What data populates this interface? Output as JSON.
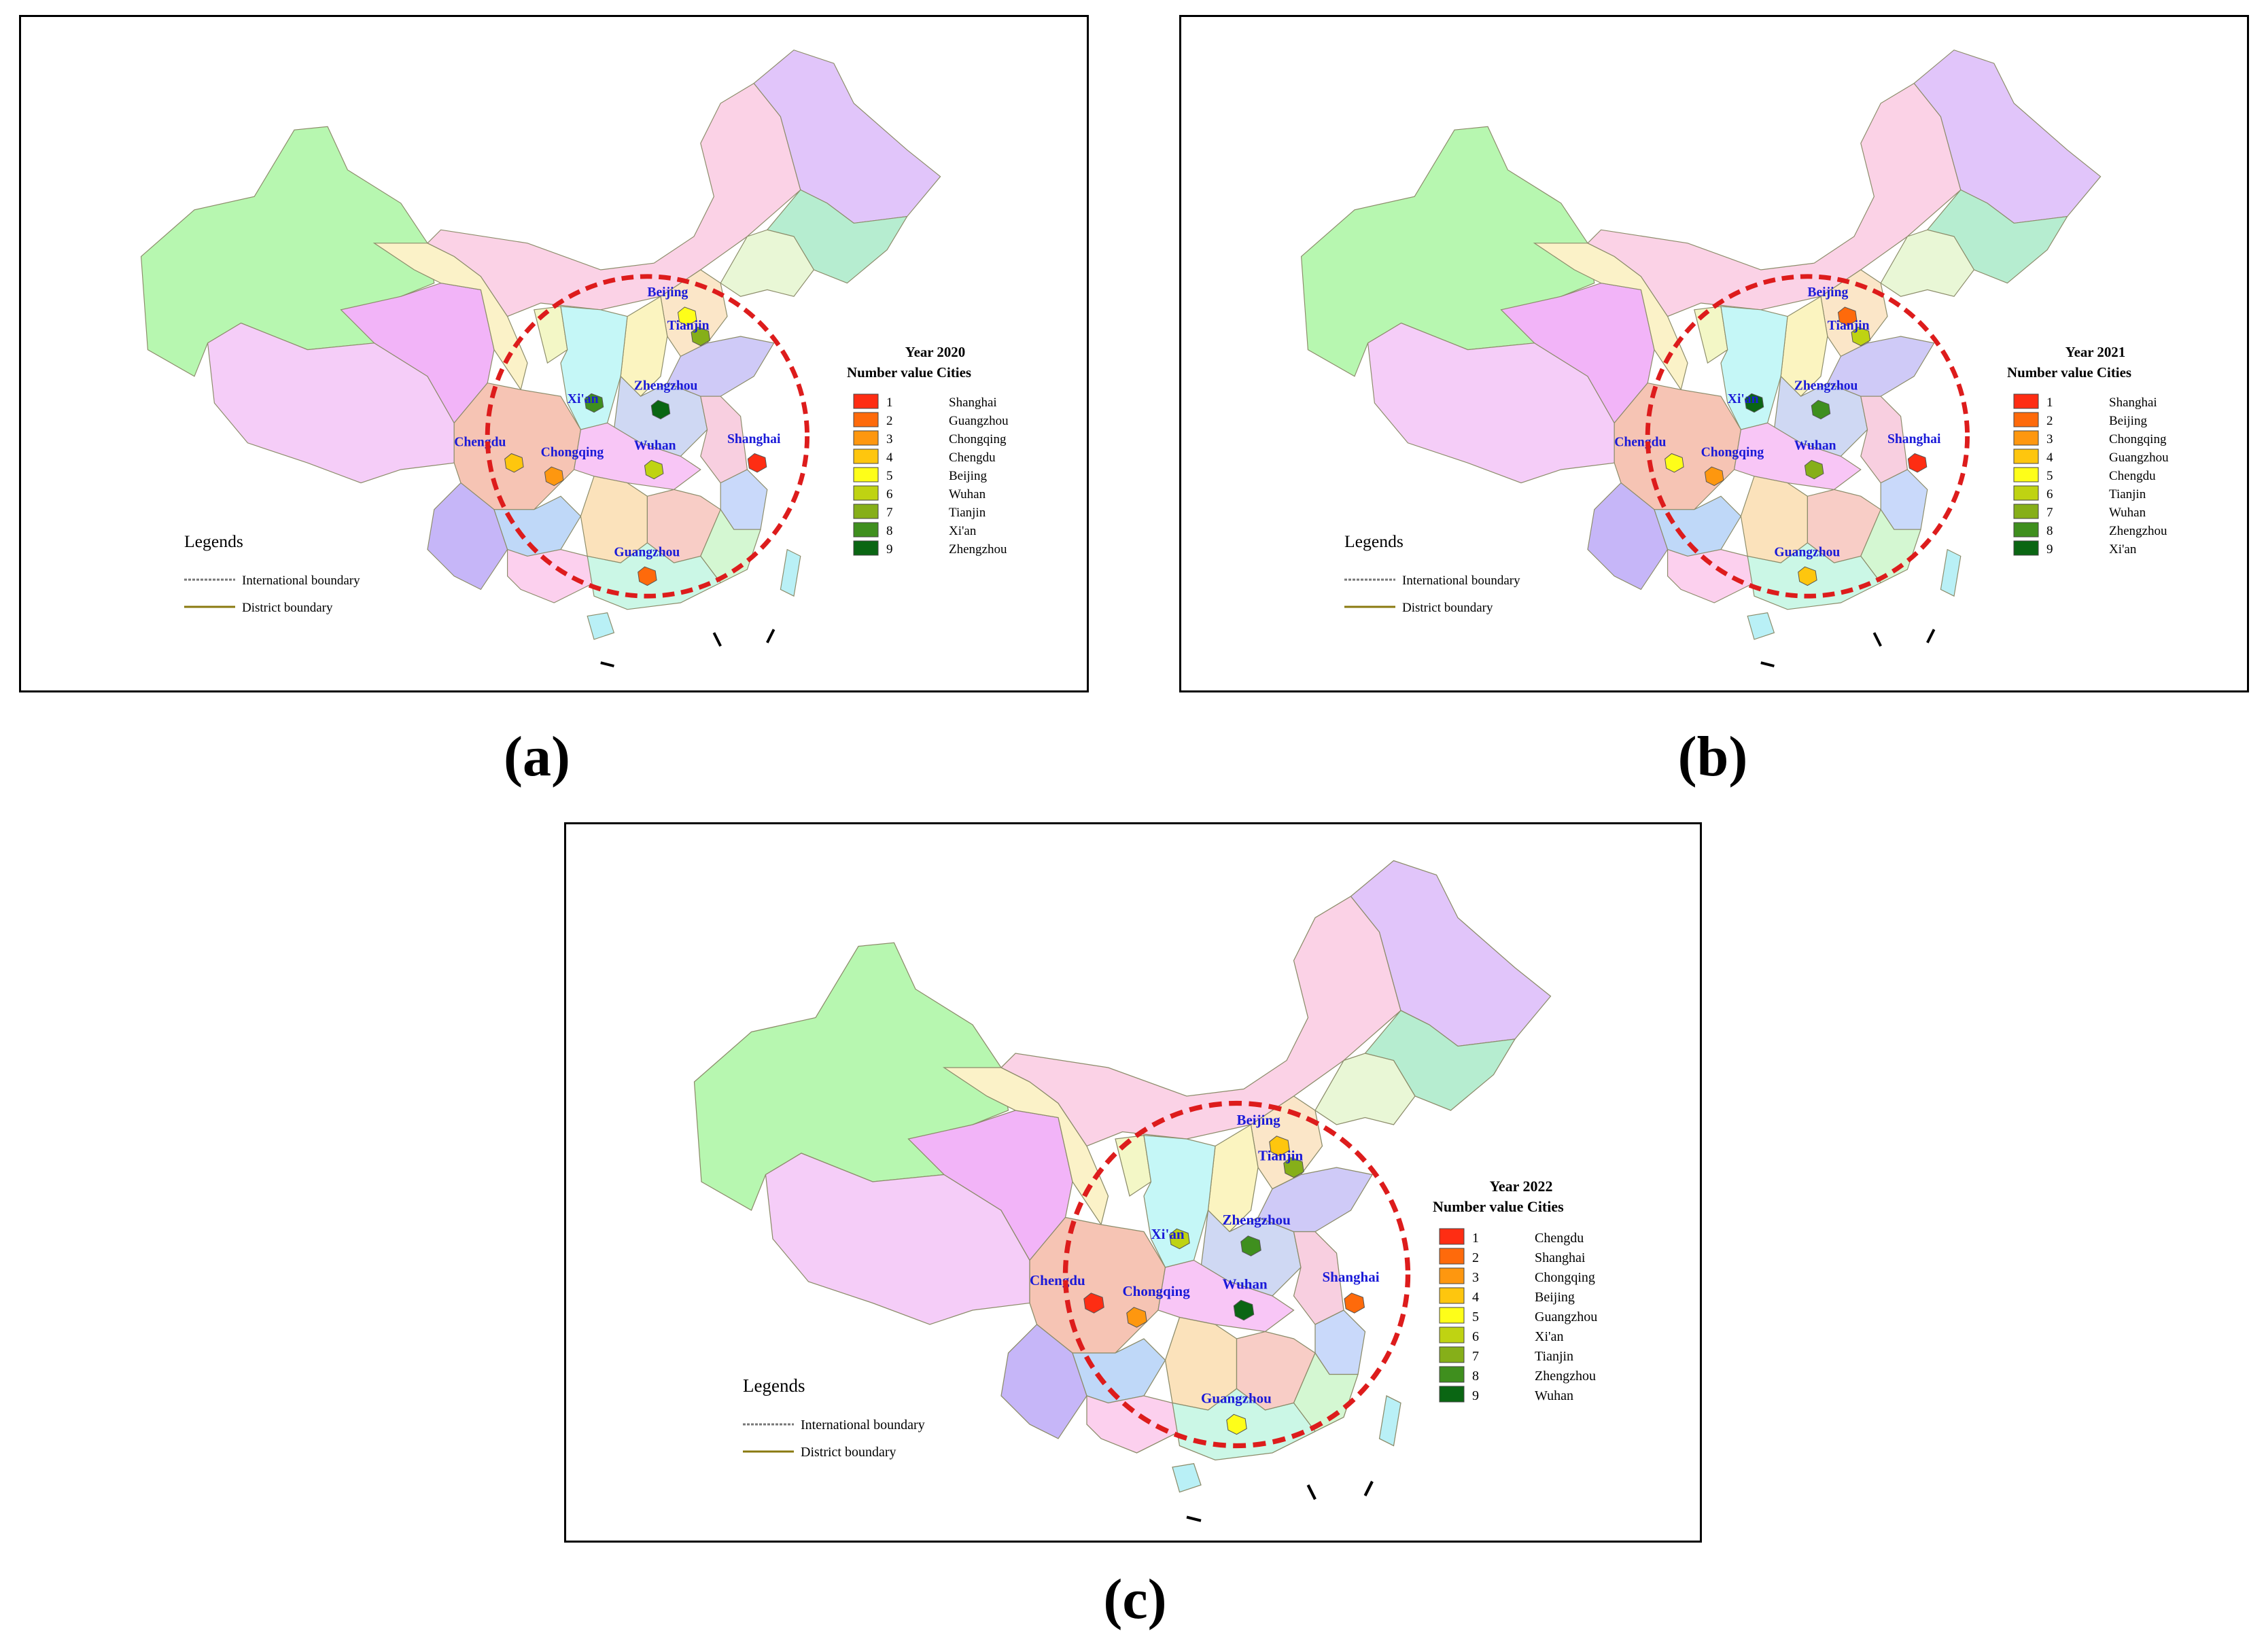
{
  "colors": {
    "ring": "#dd1c1c",
    "city_label": "#1a1ad8",
    "xinjiang": "#b7f7b0",
    "tibet": "#f5cdf8",
    "qinghai": "#f2b4f8",
    "gansu": "#fbf2c8",
    "inner_mongolia": "#fbd2e6",
    "heilongjiang": "#e1c5fa",
    "jilin": "#b6edd0",
    "liaoning": "#e9f7d6",
    "sichuan": "#f6c4b4",
    "yunnan": "#c6b6f8",
    "guangxi": "#fcd0ee",
    "guizhou": "#bfd8f8",
    "hunan": "#fbe2bb",
    "jiangxi": "#f8cdc6",
    "fujian": "#d4f7d2",
    "guangdong": "#cbf7e6",
    "hubei": "#f8c6f6",
    "henan": "#cfd8f3",
    "anhui": "#f8cfe0",
    "shandong": "#cfcaf7",
    "shanxi": "#fbf4c0",
    "shaanxi": "#c5f7f7",
    "ningxia": "#f3f7c6",
    "hebei": "#fbe6c8",
    "zhejiang": "#c9d9fa",
    "hainan": "#b9f0f6",
    "taiwan": "#b9f0f6",
    "rank": [
      "#fe2d13",
      "#fe6a0b",
      "#fe970f",
      "#fec60e",
      "#fefe19",
      "#bfd312",
      "#86af19",
      "#3f8f1e",
      "#0a6613"
    ]
  },
  "legend_boundaries": {
    "title": "Legends",
    "international": "International boundary",
    "district": "District boundary"
  },
  "panels": [
    {
      "caption": "(a)",
      "year_title": "Year 2020",
      "header": "Number value  Cities",
      "rows": [
        {
          "rank": "1",
          "city": "Shanghai"
        },
        {
          "rank": "2",
          "city": "Guangzhou"
        },
        {
          "rank": "3",
          "city": "Chongqing"
        },
        {
          "rank": "4",
          "city": "Chengdu"
        },
        {
          "rank": "5",
          "city": "Beijing"
        },
        {
          "rank": "6",
          "city": "Wuhan"
        },
        {
          "rank": "7",
          "city": "Tianjin"
        },
        {
          "rank": "8",
          "city": "Xi'an"
        },
        {
          "rank": "9",
          "city": "Zhengzhou"
        }
      ]
    },
    {
      "caption": "(b)",
      "year_title": "Year 2021",
      "header": "Number value  Cities",
      "rows": [
        {
          "rank": "1",
          "city": "Shanghai"
        },
        {
          "rank": "2",
          "city": "Beijing"
        },
        {
          "rank": "3",
          "city": "Chongqing"
        },
        {
          "rank": "4",
          "city": "Guangzhou"
        },
        {
          "rank": "5",
          "city": "Chengdu"
        },
        {
          "rank": "6",
          "city": "Tianjin"
        },
        {
          "rank": "7",
          "city": "Wuhan"
        },
        {
          "rank": "8",
          "city": "Zhengzhou"
        },
        {
          "rank": "9",
          "city": "Xi'an"
        }
      ]
    },
    {
      "caption": "(c)",
      "year_title": "Year 2022",
      "header": "Number value  Cities",
      "rows": [
        {
          "rank": "1",
          "city": "Chengdu"
        },
        {
          "rank": "2",
          "city": "Shanghai"
        },
        {
          "rank": "3",
          "city": "Chongqing"
        },
        {
          "rank": "4",
          "city": "Beijing"
        },
        {
          "rank": "5",
          "city": "Guangzhou"
        },
        {
          "rank": "6",
          "city": "Xi'an"
        },
        {
          "rank": "7",
          "city": "Tianjin"
        },
        {
          "rank": "8",
          "city": "Zhengzhou"
        },
        {
          "rank": "9",
          "city": "Wuhan"
        }
      ]
    }
  ],
  "city_labels": [
    "Beijing",
    "Tianjin",
    "Xi'an",
    "Zhengzhou",
    "Chengdu",
    "Chongqing",
    "Wuhan",
    "Shanghai",
    "Guangzhou"
  ]
}
